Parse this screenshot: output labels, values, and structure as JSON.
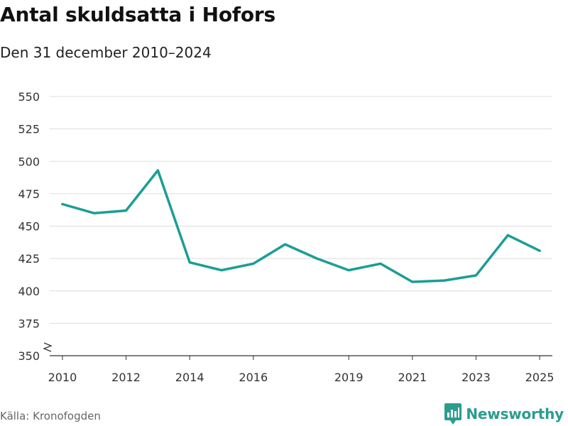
{
  "title": "Antal skuldsatta i Hofors",
  "subtitle": "Den 31 december 2010–2024",
  "source": "Källa: Kronofogden",
  "brand": {
    "name": "Newsworthy",
    "icon": "newsworthy-logo-icon"
  },
  "colors": {
    "line": "#1a9e95",
    "grid": "#dddddd",
    "axis": "#333333",
    "brand": "#2a9d8f"
  },
  "chart_data": {
    "type": "line",
    "title": "Antal skuldsatta i Hofors",
    "subtitle": "Den 31 december 2010–2024",
    "x_ticks": [
      "2010",
      "2012",
      "2014",
      "2016",
      "2019",
      "2021",
      "2023",
      "2025"
    ],
    "y_ticks": [
      "350",
      "375",
      "400",
      "425",
      "450",
      "475",
      "500",
      "525",
      "550"
    ],
    "xlim": [
      2009.6,
      2025.4
    ],
    "ylim": [
      350,
      550
    ],
    "y_axis_break": true,
    "grid": "horizontal",
    "series": [
      {
        "x": [
          2010,
          2011,
          2012,
          2013,
          2014,
          2015,
          2016,
          2017,
          2018,
          2019,
          2020,
          2021,
          2022,
          2023,
          2024,
          2025
        ],
        "values": [
          467,
          460,
          462,
          493,
          422,
          416,
          421,
          436,
          425,
          416,
          421,
          407,
          408,
          412,
          443,
          431
        ]
      }
    ]
  }
}
